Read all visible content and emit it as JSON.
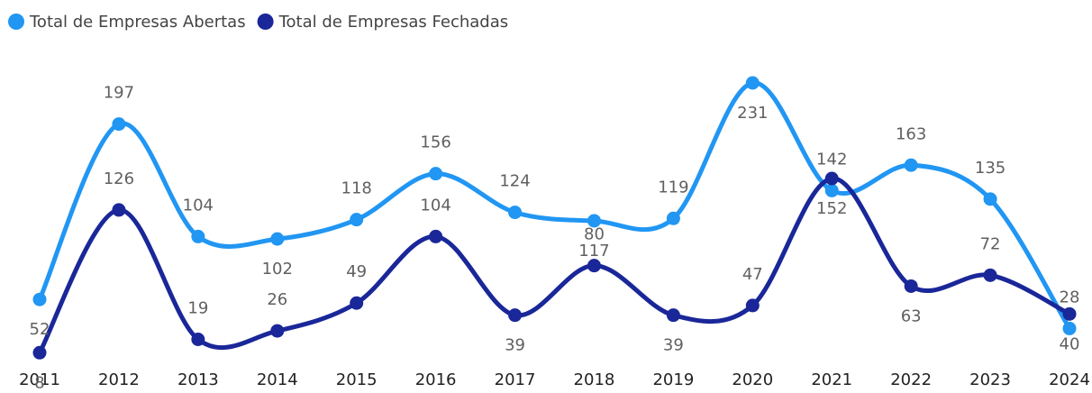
{
  "chart_data": {
    "type": "line",
    "categories": [
      "2011",
      "2012",
      "2013",
      "2014",
      "2015",
      "2016",
      "2017",
      "2018",
      "2019",
      "2020",
      "2021",
      "2022",
      "2023",
      "2024"
    ],
    "series": [
      {
        "name": "Total de Empresas Abertas",
        "color": "#2196f3",
        "values": [
          52,
          197,
          104,
          102,
          118,
          156,
          124,
          117,
          119,
          231,
          142,
          163,
          135,
          28
        ]
      },
      {
        "name": "Total de Empresas Fechadas",
        "color": "#1a2799",
        "values": [
          8,
          126,
          19,
          26,
          49,
          104,
          39,
          80,
          39,
          47,
          152,
          63,
          72,
          40
        ]
      }
    ],
    "legend": "top-left"
  }
}
